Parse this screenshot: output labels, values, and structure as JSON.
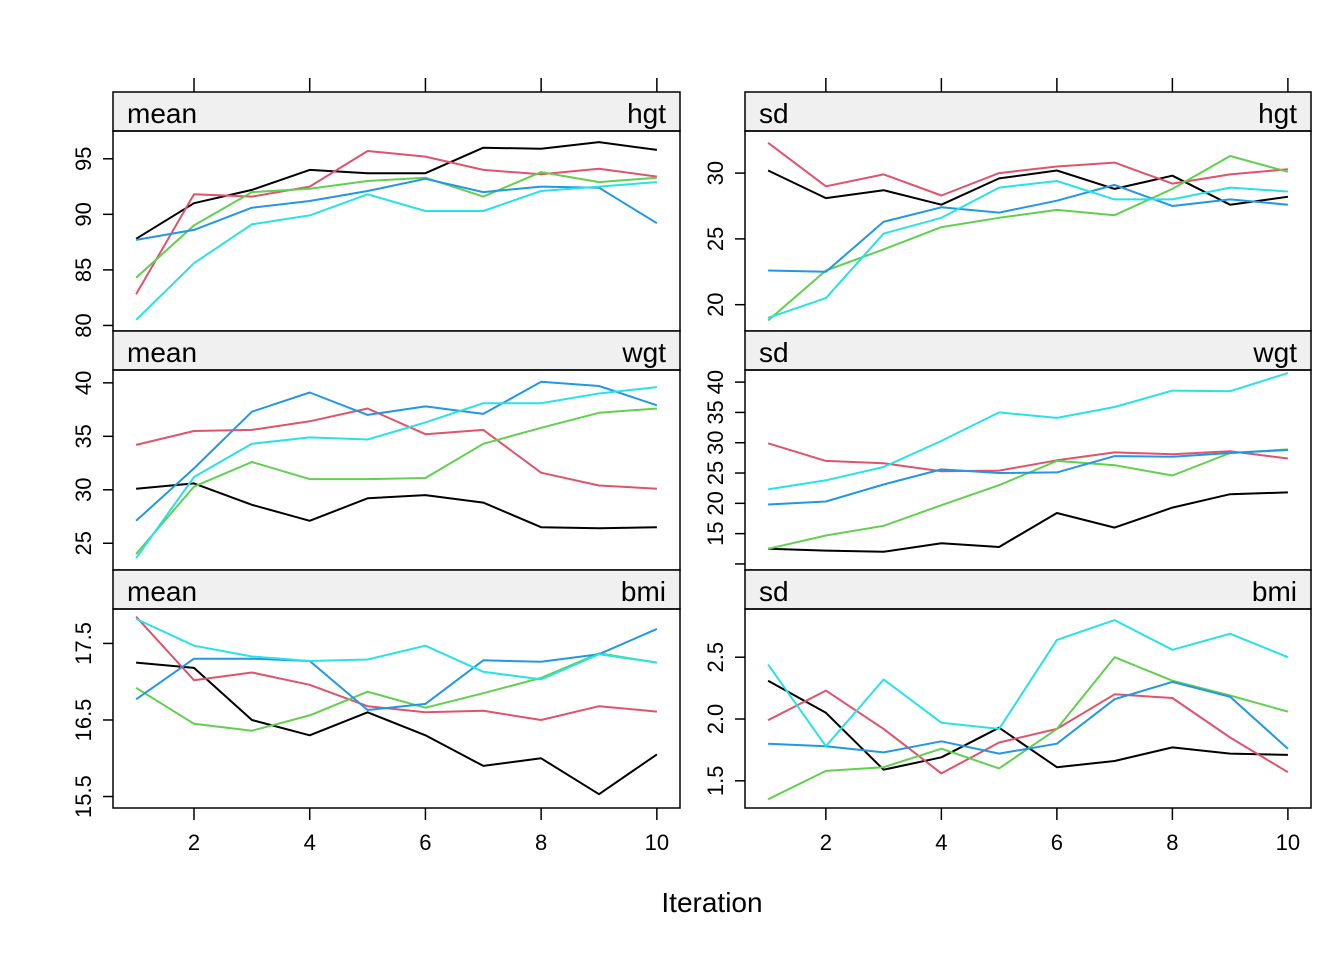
{
  "xlabel": "Iteration",
  "series_colors": [
    "#000000",
    "#DF536B",
    "#61D04F",
    "#2297E6",
    "#28E2E5"
  ],
  "chart_data": [
    {
      "type": "line",
      "stat": "mean",
      "var": "hgt",
      "x": [
        1,
        2,
        3,
        4,
        5,
        6,
        7,
        8,
        9,
        10
      ],
      "xticks": [
        2,
        4,
        6,
        8,
        10
      ],
      "xlim": [
        0.6,
        10.4
      ],
      "yticks": [
        80,
        85,
        90,
        95
      ],
      "ytick_labels": [
        "80",
        "85",
        "90",
        "95"
      ],
      "ylim": [
        79.5,
        97.5
      ],
      "series": [
        {
          "values": [
            87.8,
            91.0,
            92.2,
            94.0,
            93.7,
            93.7,
            96.0,
            95.9,
            96.5,
            95.8
          ]
        },
        {
          "values": [
            82.8,
            91.8,
            91.6,
            92.5,
            95.7,
            95.2,
            94.0,
            93.6,
            94.1,
            93.4
          ]
        },
        {
          "values": [
            84.3,
            89.0,
            92.0,
            92.3,
            93.0,
            93.3,
            91.6,
            93.8,
            92.9,
            93.3
          ]
        },
        {
          "values": [
            87.7,
            88.6,
            90.6,
            91.2,
            92.1,
            93.2,
            92.0,
            92.5,
            92.4,
            89.2
          ]
        },
        {
          "values": [
            80.5,
            85.6,
            89.1,
            89.9,
            91.8,
            90.3,
            90.3,
            92.1,
            92.5,
            92.9
          ]
        }
      ]
    },
    {
      "type": "line",
      "stat": "sd",
      "var": "hgt",
      "x": [
        1,
        2,
        3,
        4,
        5,
        6,
        7,
        8,
        9,
        10
      ],
      "xticks": [
        2,
        4,
        6,
        8,
        10
      ],
      "xlim": [
        0.6,
        10.4
      ],
      "yticks": [
        20,
        25,
        30
      ],
      "ytick_labels": [
        "20",
        "25",
        "30"
      ],
      "ylim": [
        18.0,
        33.2
      ],
      "series": [
        {
          "values": [
            30.2,
            28.1,
            28.7,
            27.6,
            29.6,
            30.2,
            28.8,
            29.8,
            27.6,
            28.2
          ]
        },
        {
          "values": [
            32.3,
            29.0,
            29.9,
            28.3,
            30.0,
            30.5,
            30.8,
            29.2,
            29.9,
            30.3
          ]
        },
        {
          "values": [
            18.8,
            22.6,
            24.2,
            25.9,
            26.6,
            27.2,
            26.8,
            28.8,
            31.3,
            30.1
          ]
        },
        {
          "values": [
            22.6,
            22.5,
            26.3,
            27.4,
            27.0,
            27.9,
            29.1,
            27.5,
            28.0,
            27.6
          ]
        },
        {
          "values": [
            19.0,
            20.5,
            25.4,
            26.6,
            28.9,
            29.4,
            28.0,
            28.0,
            28.9,
            28.6
          ]
        }
      ]
    },
    {
      "type": "line",
      "stat": "mean",
      "var": "wgt",
      "x": [
        1,
        2,
        3,
        4,
        5,
        6,
        7,
        8,
        9,
        10
      ],
      "xticks": [
        2,
        4,
        6,
        8,
        10
      ],
      "xlim": [
        0.6,
        10.4
      ],
      "yticks": [
        25,
        30,
        35,
        40
      ],
      "ytick_labels": [
        "25",
        "30",
        "35",
        "40"
      ],
      "ylim": [
        22.5,
        41.2
      ],
      "series": [
        {
          "values": [
            30.1,
            30.6,
            28.6,
            27.1,
            29.2,
            29.5,
            28.8,
            26.5,
            26.4,
            26.5
          ]
        },
        {
          "values": [
            34.2,
            35.5,
            35.6,
            36.4,
            37.6,
            35.2,
            35.6,
            31.6,
            30.4,
            30.1
          ]
        },
        {
          "values": [
            24.0,
            30.3,
            32.6,
            31.0,
            31.0,
            31.1,
            34.3,
            35.8,
            37.2,
            37.6
          ]
        },
        {
          "values": [
            27.1,
            32.0,
            37.3,
            39.1,
            37.0,
            37.8,
            37.1,
            40.1,
            39.7,
            37.9
          ]
        },
        {
          "values": [
            23.6,
            31.2,
            34.3,
            34.9,
            34.7,
            36.3,
            38.1,
            38.1,
            39.0,
            39.6
          ]
        }
      ]
    },
    {
      "type": "line",
      "stat": "sd",
      "var": "wgt",
      "x": [
        1,
        2,
        3,
        4,
        5,
        6,
        7,
        8,
        9,
        10
      ],
      "xticks": [
        2,
        4,
        6,
        8,
        10
      ],
      "xlim": [
        0.6,
        10.4
      ],
      "yticks": [
        10,
        15,
        20,
        25,
        30,
        35,
        40
      ],
      "ytick_labels": [
        "",
        "15",
        "20",
        "25",
        "30",
        "35",
        "40"
      ],
      "ylim": [
        9.0,
        42.0
      ],
      "series": [
        {
          "values": [
            12.5,
            12.2,
            12.0,
            13.4,
            12.8,
            18.4,
            16.0,
            19.3,
            21.5,
            21.8
          ]
        },
        {
          "values": [
            29.9,
            27.0,
            26.6,
            25.3,
            25.4,
            27.1,
            28.4,
            28.1,
            28.6,
            27.4
          ]
        },
        {
          "values": [
            12.5,
            14.7,
            16.3,
            19.7,
            23.0,
            27.0,
            26.3,
            24.6,
            28.3,
            28.9
          ]
        },
        {
          "values": [
            19.8,
            20.3,
            23.1,
            25.6,
            25.0,
            25.1,
            27.8,
            27.7,
            28.3,
            28.8
          ]
        },
        {
          "values": [
            22.3,
            23.8,
            26.0,
            30.3,
            35.0,
            34.1,
            35.9,
            38.6,
            38.5,
            41.5
          ]
        }
      ]
    },
    {
      "type": "line",
      "stat": "mean",
      "var": "bmi",
      "x": [
        1,
        2,
        3,
        4,
        5,
        6,
        7,
        8,
        9,
        10
      ],
      "xticks": [
        2,
        4,
        6,
        8,
        10
      ],
      "xlim": [
        0.6,
        10.4
      ],
      "yticks": [
        15.5,
        16.5,
        17.5
      ],
      "ytick_labels": [
        "15.5",
        "16.5",
        "17.5"
      ],
      "ylim": [
        15.35,
        17.95
      ],
      "series": [
        {
          "values": [
            17.25,
            17.18,
            16.5,
            16.3,
            16.6,
            16.3,
            15.9,
            16.0,
            15.53,
            16.05
          ]
        },
        {
          "values": [
            17.85,
            17.02,
            17.12,
            16.96,
            16.68,
            16.6,
            16.62,
            16.5,
            16.68,
            16.61
          ]
        },
        {
          "values": [
            16.92,
            16.45,
            16.36,
            16.56,
            16.87,
            16.66,
            16.85,
            17.05,
            17.37,
            17.25
          ]
        },
        {
          "values": [
            16.77,
            17.3,
            17.3,
            17.27,
            16.63,
            16.71,
            17.28,
            17.26,
            17.36,
            17.69
          ]
        },
        {
          "values": [
            17.82,
            17.47,
            17.33,
            17.27,
            17.29,
            17.47,
            17.13,
            17.03,
            17.36,
            17.25
          ]
        }
      ]
    },
    {
      "type": "line",
      "stat": "sd",
      "var": "bmi",
      "x": [
        1,
        2,
        3,
        4,
        5,
        6,
        7,
        8,
        9,
        10
      ],
      "xticks": [
        2,
        4,
        6,
        8,
        10
      ],
      "xlim": [
        0.6,
        10.4
      ],
      "yticks": [
        1.5,
        2.0,
        2.5
      ],
      "ytick_labels": [
        "1.5",
        "2.0",
        "2.5"
      ],
      "ylim": [
        1.28,
        2.89
      ],
      "series": [
        {
          "values": [
            2.31,
            2.05,
            1.59,
            1.69,
            1.93,
            1.61,
            1.66,
            1.77,
            1.72,
            1.71
          ]
        },
        {
          "values": [
            1.99,
            2.23,
            1.92,
            1.56,
            1.81,
            1.92,
            2.2,
            2.17,
            1.85,
            1.57
          ]
        },
        {
          "values": [
            1.35,
            1.58,
            1.61,
            1.76,
            1.6,
            1.92,
            2.5,
            2.31,
            2.19,
            2.06
          ]
        },
        {
          "values": [
            1.8,
            1.78,
            1.73,
            1.82,
            1.72,
            1.8,
            2.16,
            2.3,
            2.18,
            1.76
          ]
        },
        {
          "values": [
            2.44,
            1.78,
            2.32,
            1.97,
            1.92,
            2.64,
            2.8,
            2.56,
            2.69,
            2.5
          ]
        }
      ]
    }
  ]
}
